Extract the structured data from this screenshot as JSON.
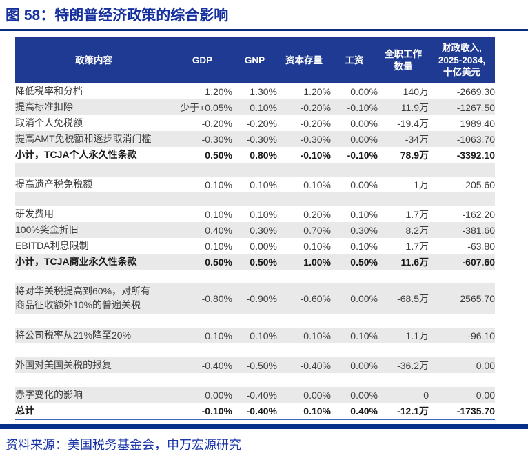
{
  "title": "图 58：特朗普经济政策的综合影响",
  "source": "资料来源：美国税务基金会，申万宏源研究",
  "colors": {
    "title_blue": "#142f9e",
    "header_bg": "#1f3a93",
    "rule_line": "#0a2c80",
    "bottom_bar": "#063089",
    "row_alt_gray": "#e9e9e9",
    "total_underline": "#3f64b5",
    "source_blue": "#1b35a8"
  },
  "table": {
    "headers": [
      "政策内容",
      "GDP",
      "GNP",
      "资本存量",
      "工资",
      "全职工作\n数量",
      "财政收入,\n2025-2034,\n十亿美元"
    ],
    "rows": [
      {
        "style": "normal",
        "bg": "white",
        "policy": "降低税率和分档",
        "values": [
          "1.20%",
          "1.30%",
          "1.20%",
          "0.00%",
          "140万",
          "-2669.30"
        ]
      },
      {
        "style": "normal",
        "bg": "gray",
        "policy": "提高标准扣除",
        "values": [
          "少于+0.05%",
          "0.10%",
          "-0.20%",
          "-0.10%",
          "11.9万",
          "-1267.50"
        ]
      },
      {
        "style": "normal",
        "bg": "white",
        "policy": "取消个人免税额",
        "values": [
          "-0.20%",
          "-0.20%",
          "-0.20%",
          "0.00%",
          "-19.4万",
          "1989.40"
        ]
      },
      {
        "style": "normal",
        "bg": "gray",
        "policy": "提高AMT免税额和逐步取消门槛",
        "values": [
          "-0.30%",
          "-0.30%",
          "-0.30%",
          "0.00%",
          "-34万",
          "-1063.70"
        ]
      },
      {
        "style": "bold",
        "bg": "white",
        "policy": "小计，TCJA个人永久性条款",
        "values": [
          "0.50%",
          "0.80%",
          "-0.10%",
          "-0.10%",
          "78.9万",
          "-3392.10"
        ]
      },
      {
        "style": "spacer",
        "bg": "gray"
      },
      {
        "style": "normal",
        "bg": "white",
        "policy": "提高遗产税免税额",
        "values": [
          "0.10%",
          "0.10%",
          "0.10%",
          "0.00%",
          "1万",
          "-205.60"
        ]
      },
      {
        "style": "spacer",
        "bg": "gray"
      },
      {
        "style": "normal",
        "bg": "white",
        "policy": "研发费用",
        "values": [
          "0.10%",
          "0.10%",
          "0.20%",
          "0.10%",
          "1.7万",
          "-162.20"
        ]
      },
      {
        "style": "normal",
        "bg": "gray",
        "policy": "100%奖金折旧",
        "values": [
          "0.40%",
          "0.30%",
          "0.70%",
          "0.30%",
          "8.2万",
          "-381.60"
        ]
      },
      {
        "style": "normal",
        "bg": "white",
        "policy": "EBITDA利息限制",
        "values": [
          "0.10%",
          "0.00%",
          "0.10%",
          "0.10%",
          "1.7万",
          "-63.80"
        ]
      },
      {
        "style": "bold",
        "bg": "gray",
        "policy": "小计，TCJA商业永久性条款",
        "values": [
          "0.50%",
          "0.50%",
          "1.00%",
          "0.50%",
          "11.6万",
          "-607.60"
        ]
      },
      {
        "style": "spacer",
        "bg": "white"
      },
      {
        "style": "tall",
        "bg": "gray",
        "policy": "将对华关税提高到60%，对所有\n商品征收额外10%的普遍关税",
        "values": [
          "-0.80%",
          "-0.90%",
          "-0.60%",
          "0.00%",
          "-68.5万",
          "2565.70"
        ]
      },
      {
        "style": "spacer",
        "bg": "white"
      },
      {
        "style": "normal",
        "bg": "gray",
        "policy": "将公司税率从21%降至20%",
        "values": [
          "0.10%",
          "0.10%",
          "0.10%",
          "0.10%",
          "1.1万",
          "-96.10"
        ]
      },
      {
        "style": "spacer",
        "bg": "white"
      },
      {
        "style": "normal",
        "bg": "gray",
        "policy": "外国对美国关税的报复",
        "values": [
          "-0.40%",
          "-0.50%",
          "-0.40%",
          "0.00%",
          "-36.2万",
          "0.00"
        ]
      },
      {
        "style": "spacer",
        "bg": "white"
      },
      {
        "style": "normal",
        "bg": "gray",
        "policy": "赤字变化的影响",
        "values": [
          "0.00%",
          "-0.40%",
          "0.00%",
          "0.00%",
          "0",
          "0.00"
        ]
      },
      {
        "style": "total",
        "bg": "white",
        "policy": "总计",
        "values": [
          "-0.10%",
          "-0.40%",
          "0.10%",
          "0.40%",
          "-12.1万",
          "-1735.70"
        ]
      }
    ]
  }
}
